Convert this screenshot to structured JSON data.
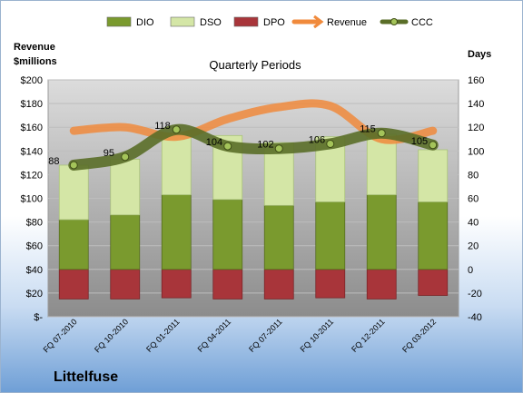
{
  "company": "Littelfuse",
  "chart_data": {
    "type": "bar",
    "title": "Quarterly Periods",
    "left_axis_title": [
      "Revenue",
      "$millions"
    ],
    "right_axis_title": "Days",
    "categories": [
      "FQ 07-2010",
      "FQ 10-2010",
      "FQ 01-2011",
      "FQ 04-2011",
      "FQ 07-2011",
      "FQ 10-2011",
      "FQ 12-2011",
      "FQ 03-2012"
    ],
    "left_ylim": [
      0,
      200
    ],
    "left_ticks": [
      "$-",
      "$20",
      "$40",
      "$60",
      "$80",
      "$100",
      "$120",
      "$140",
      "$160",
      "$180",
      "$200"
    ],
    "right_ylim": [
      -40,
      160
    ],
    "right_ticks": [
      "-40",
      "-20",
      "0",
      "20",
      "40",
      "60",
      "80",
      "100",
      "120",
      "140",
      "160"
    ],
    "legend": [
      "DIO",
      "DSO",
      "DPO",
      "Revenue",
      "CCC"
    ],
    "colors": {
      "DIO": "#7a9a2e",
      "DSO": "#d4e6a6",
      "DPO": "#a8353a",
      "Revenue": "#f08a3c",
      "CCC": "#5a6e28"
    },
    "series": [
      {
        "name": "DIO",
        "axis": "days",
        "values": [
          42,
          46,
          63,
          59,
          54,
          57,
          63,
          57
        ]
      },
      {
        "name": "DSO",
        "axis": "days",
        "values": [
          46,
          47,
          52,
          54,
          53,
          55,
          51,
          44
        ]
      },
      {
        "name": "DPO",
        "axis": "days",
        "values": [
          -25,
          -25,
          -24,
          -25,
          -25,
          -24,
          -25,
          -22
        ]
      },
      {
        "name": "Revenue",
        "axis": "revenue",
        "values": [
          157,
          160,
          152,
          167,
          177,
          178,
          150,
          157
        ]
      },
      {
        "name": "CCC",
        "axis": "days",
        "values": [
          88,
          95,
          118,
          104,
          102,
          106,
          115,
          105
        ]
      }
    ],
    "ccc_labels": [
      "88",
      "95",
      "118",
      "104",
      "102",
      "106",
      "115",
      "105"
    ]
  }
}
